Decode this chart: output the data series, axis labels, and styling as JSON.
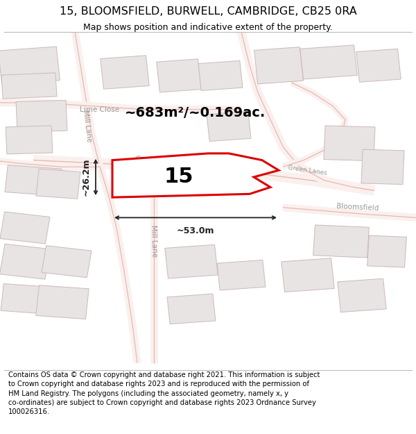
{
  "title": "15, BLOOMSFIELD, BURWELL, CAMBRIDGE, CB25 0RA",
  "subtitle": "Map shows position and indicative extent of the property.",
  "footer": "Contains OS data © Crown copyright and database right 2021. This information is subject\nto Crown copyright and database rights 2023 and is reproduced with the permission of\nHM Land Registry. The polygons (including the associated geometry, namely x, y\nco-ordinates) are subject to Crown copyright and database rights 2023 Ordnance Survey\n100026316.",
  "area_label": "~683m²/~0.169ac.",
  "width_label": "~53.0m",
  "height_label": "~26.2m",
  "plot_number": "15",
  "map_bg_color": "#f7f4f4",
  "road_fill_color": "#faf0ee",
  "road_outline_color": "#e8b8b0",
  "building_color": "#e8e4e4",
  "building_outline": "#ccb8b8",
  "road_label_color": "#999999",
  "highlight_polygon_color": "#dd0000",
  "dim_color": "#222222",
  "title_fontsize": 11.5,
  "subtitle_fontsize": 9,
  "footer_fontsize": 7.2,
  "area_fontsize": 14,
  "plot_label_fontsize": 22,
  "road_label_fontsize": 7.5,
  "dim_label_fontsize": 9
}
